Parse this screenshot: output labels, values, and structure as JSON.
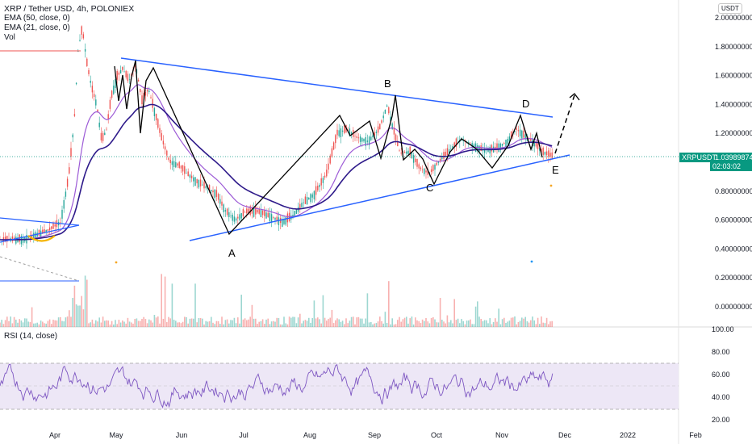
{
  "legend": {
    "title": "XRP / Tether USD, 4h, POLONIEX",
    "ema50": "EMA (50, close, 0)",
    "ema21": "EMA (21, close, 0)",
    "vol": "Vol",
    "rsi": "RSI (14, close)"
  },
  "currency": "USDT",
  "price_tag": {
    "symbol": "XRPUSDT",
    "price": "1.03989874",
    "countdown": "02:03:02"
  },
  "price_axis": [
    "2.00000000",
    "1.80000000",
    "1.60000000",
    "1.40000000",
    "1.20000000",
    "1.00000000",
    "0.80000000",
    "0.60000000",
    "0.40000000",
    "0.20000000",
    "0.00000000"
  ],
  "rsi_axis": [
    "100.00",
    "80.00",
    "60.00",
    "40.00",
    "20.00"
  ],
  "time_axis": [
    "Apr",
    "May",
    "Jun",
    "Jul",
    "Aug",
    "Sep",
    "Oct",
    "Nov",
    "Dec",
    "2022",
    "Feb"
  ],
  "wave_labels": [
    "A",
    "B",
    "C",
    "D",
    "E"
  ],
  "colors": {
    "trendline": "#2962ff",
    "ema50": "#2e1a8a",
    "ema21": "#9c5ad6",
    "up": "#26a69a",
    "down": "#ef5350",
    "rsi": "#7e57c2",
    "rsi_band": "#ede7f6",
    "price_tag": "#089981",
    "zigzag": "#000000",
    "highlight": "#f5b400"
  },
  "chart_data": {
    "type": "candlestick",
    "price_ylim": [
      0,
      2
    ],
    "rsi_ylim": [
      20,
      100
    ],
    "rsi_bands": [
      30,
      70
    ],
    "rsi_midline": 50,
    "ema50_approx": [
      [
        1,
        0.45
      ],
      [
        2,
        0.5
      ],
      [
        3,
        0.52
      ],
      [
        4,
        0.6
      ],
      [
        5,
        0.95
      ],
      [
        6,
        1.25
      ],
      [
        7,
        1.45
      ],
      [
        8,
        1.45
      ],
      [
        9,
        1.35
      ],
      [
        10,
        1.4
      ],
      [
        11,
        1.35
      ],
      [
        12,
        1.2
      ],
      [
        13,
        1.05
      ],
      [
        14,
        0.95
      ],
      [
        15,
        0.92
      ],
      [
        16,
        0.82
      ],
      [
        17,
        0.72
      ],
      [
        18,
        0.62
      ],
      [
        19,
        0.58
      ],
      [
        20,
        0.6
      ],
      [
        21,
        0.6
      ],
      [
        22,
        0.58
      ],
      [
        23,
        0.55
      ],
      [
        24,
        0.6
      ],
      [
        25,
        0.65
      ],
      [
        26,
        0.72
      ],
      [
        27,
        0.85
      ],
      [
        28,
        1.05
      ],
      [
        29,
        1.15
      ],
      [
        30,
        1.1
      ],
      [
        31,
        1.15
      ],
      [
        32,
        1.2
      ],
      [
        33,
        1.15
      ],
      [
        34,
        1.05
      ],
      [
        35,
        0.98
      ],
      [
        36,
        0.92
      ],
      [
        37,
        0.95
      ],
      [
        38,
        1.05
      ],
      [
        39,
        1.1
      ],
      [
        40,
        1.1
      ],
      [
        41,
        1.12
      ],
      [
        42,
        1.12
      ],
      [
        43,
        1.15
      ],
      [
        44,
        1.15
      ],
      [
        45,
        1.1
      ],
      [
        46,
        1.05
      ]
    ],
    "zigzag_points": [
      [
        1.6,
        1.75
      ],
      [
        1.65,
        1.45
      ],
      [
        1.7,
        1.6
      ],
      [
        1.75,
        1.3
      ],
      [
        1.8,
        1.6
      ],
      [
        1.85,
        1.72
      ],
      [
        1.9,
        1.3
      ],
      [
        1.95,
        1.62
      ],
      [
        2.0,
        1.68
      ],
      [
        2.5,
        0.52
      ],
      [
        3.15,
        1.33
      ],
      [
        3.25,
        1.15
      ],
      [
        3.45,
        1.28
      ],
      [
        3.55,
        1.03
      ],
      [
        3.7,
        1.32
      ],
      [
        3.75,
        1.46
      ],
      [
        3.82,
        1.0
      ],
      [
        3.9,
        1.18
      ],
      [
        3.97,
        1.06
      ],
      [
        4.1,
        0.87
      ],
      [
        4.25,
        1.08
      ],
      [
        4.35,
        1.2
      ],
      [
        4.45,
        1.12
      ],
      [
        4.6,
        1.0
      ],
      [
        4.75,
        1.15
      ],
      [
        4.85,
        1.33
      ],
      [
        4.95,
        1.08
      ],
      [
        5.0,
        1.22
      ],
      [
        5.05,
        1.03
      ]
    ],
    "trendlines": {
      "upper": [
        [
          1.55,
          1.73
        ],
        [
          5.35,
          1.33
        ]
      ],
      "lower": [
        [
          2.35,
          0.46
        ],
        [
          5.35,
          1.04
        ]
      ]
    },
    "projection": [
      [
        5.05,
        1.05
      ],
      [
        5.3,
        1.47
      ]
    ]
  }
}
